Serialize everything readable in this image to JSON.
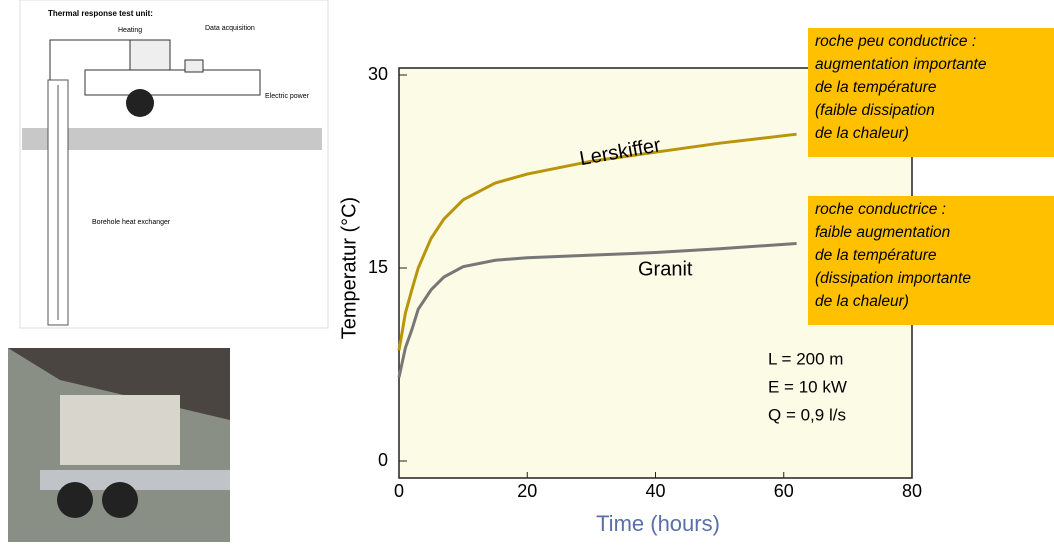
{
  "diagram": {
    "title": "Thermal response test unit:",
    "labels": [
      "Heating",
      "Data acquisition",
      "Electric power",
      "Borehole heat exchanger"
    ]
  },
  "chart_data": {
    "type": "line",
    "ylabel": "Temperatur (°C)",
    "xlabel": "Time (hours)",
    "xlim": [
      0,
      80
    ],
    "ylim": [
      0,
      30
    ],
    "xticks": [
      0,
      20,
      40,
      60,
      80
    ],
    "yticks": [
      0,
      15,
      30
    ],
    "series": [
      {
        "name": "Lerskiffer",
        "color": "#b8950a",
        "x": [
          0,
          1,
          2,
          3,
          5,
          7,
          10,
          15,
          20,
          30,
          40,
          50,
          62
        ],
        "values": [
          8.6,
          11.5,
          13.3,
          15,
          17.3,
          18.8,
          20.3,
          21.6,
          22.3,
          23.3,
          24,
          24.7,
          25.4
        ]
      },
      {
        "name": "Granit",
        "color": "#777777",
        "x": [
          0,
          1,
          2,
          3,
          5,
          7,
          10,
          15,
          20,
          30,
          40,
          50,
          62
        ],
        "values": [
          6.5,
          8.8,
          10.2,
          11.8,
          13.3,
          14.3,
          15.1,
          15.6,
          15.8,
          16,
          16.2,
          16.5,
          16.9
        ]
      }
    ],
    "parameters": [
      "L = 200 m",
      "E = 10 kW",
      "Q = 0,9 l/s"
    ],
    "annotations": [
      {
        "lines": [
          "roche peu conductrice :",
          "augmentation importante",
          "de la température",
          "(faible dissipation",
          "de la chaleur)"
        ]
      },
      {
        "lines": [
          "roche conductrice :",
          "faible augmentation",
          "de la température",
          "(dissipation importante",
          "de la chaleur)"
        ]
      }
    ]
  }
}
